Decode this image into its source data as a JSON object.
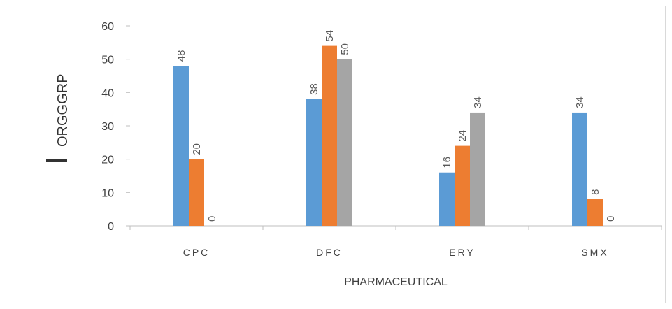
{
  "chart_data": {
    "type": "bar",
    "categories": [
      "CPC",
      "DFC",
      "ERY",
      "SMX"
    ],
    "series": [
      {
        "values": [
          48,
          38,
          16,
          34
        ],
        "color": "#5b9bd5"
      },
      {
        "values": [
          20,
          54,
          24,
          8
        ],
        "color": "#ed7d31"
      },
      {
        "values": [
          0,
          50,
          34,
          0
        ],
        "color": "#a5a5a5"
      }
    ],
    "xlabel": "PHARMACEUTICAL",
    "ylabel_big": "I",
    "ylabel_small": "ORGGGRP",
    "ylim": [
      0,
      60
    ],
    "yticks": [
      0,
      10,
      20,
      30,
      40,
      50,
      60
    ],
    "grid": false,
    "data_labels": true,
    "legend": "none"
  }
}
